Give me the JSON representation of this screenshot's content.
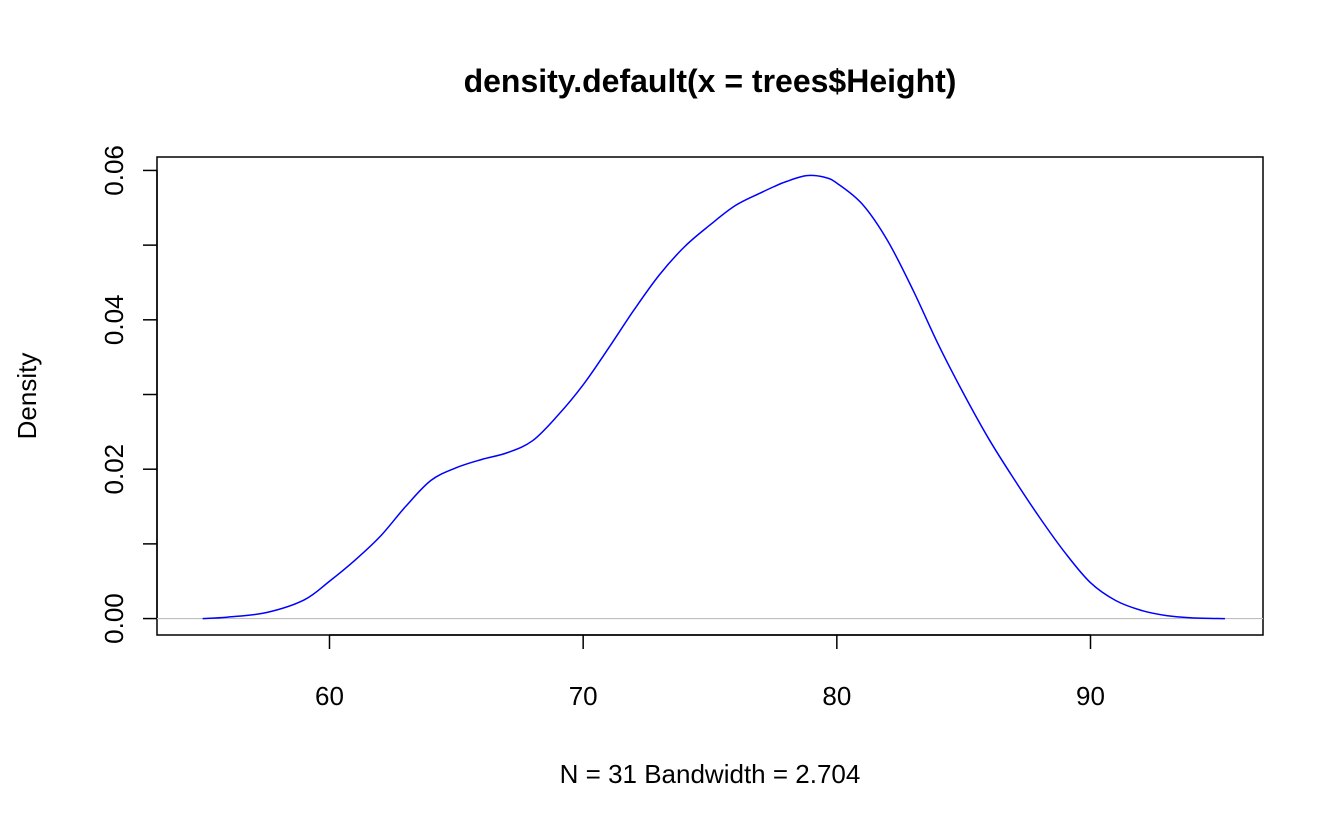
{
  "chart_data": {
    "type": "line",
    "title": "density.default(x = trees$Height)",
    "xlabel": "N = 31   Bandwidth = 2.704",
    "ylabel": "Density",
    "xlim": [
      53.2,
      96.8
    ],
    "ylim": [
      -0.0022,
      0.0618
    ],
    "x_ticks": [
      60,
      70,
      80,
      90
    ],
    "x_tick_labels": [
      "60",
      "70",
      "80",
      "90"
    ],
    "y_ticks": [
      0,
      0.01,
      0.02,
      0.03,
      0.04,
      0.05,
      0.06
    ],
    "y_tick_labels": [
      "0.00",
      "",
      "0.02",
      "",
      "0.04",
      "",
      "0.06"
    ],
    "grid": false,
    "baseline": 0,
    "series": [
      {
        "name": "density",
        "color": "#0000ff",
        "x": [
          55,
          56,
          57.5,
          59,
          60,
          61,
          62,
          63,
          64,
          65,
          66,
          67,
          68,
          69,
          70,
          71,
          72,
          73,
          74,
          75,
          76,
          77,
          77.5,
          78,
          78.8,
          79.5,
          80,
          81,
          82,
          83,
          84,
          85,
          86,
          87,
          88,
          89,
          90,
          91,
          92,
          93,
          94,
          95.3
        ],
        "y": [
          0,
          0.0002,
          0.0008,
          0.0025,
          0.005,
          0.0078,
          0.011,
          0.015,
          0.0185,
          0.0202,
          0.0213,
          0.0222,
          0.0238,
          0.0272,
          0.0313,
          0.0362,
          0.0413,
          0.046,
          0.0498,
          0.0527,
          0.0553,
          0.057,
          0.0578,
          0.0585,
          0.0593,
          0.0591,
          0.0583,
          0.0555,
          0.0506,
          0.044,
          0.0367,
          0.0301,
          0.024,
          0.0186,
          0.0135,
          0.0088,
          0.0048,
          0.0024,
          0.0011,
          0.0004,
          0.0001,
          0
        ]
      }
    ],
    "colors": {
      "line": "#0000ff",
      "baseline": "#bebebe",
      "axis": "#000000"
    }
  }
}
